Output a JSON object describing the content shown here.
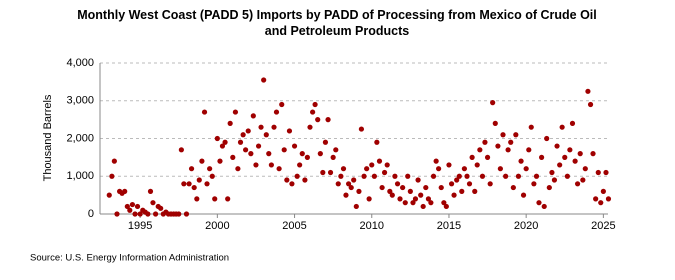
{
  "chart_data": {
    "type": "scatter",
    "title": "Monthly West Coast (PADD 5) Imports by PADD of Processing from Mexico of Crude Oil and Petroleum Products",
    "y_label": "Thousand Barrels",
    "source": "Source: U.S. Energy Information Administration",
    "color": "#a00000",
    "grid": true,
    "xlim": [
      1992.4,
      2025.3
    ],
    "xticks": [
      1995,
      2000,
      2005,
      2010,
      2015,
      2020,
      2025
    ],
    "ylim": [
      0,
      4000
    ],
    "yticks": [
      0,
      {
        "value": 1000,
        "label": "1,000"
      },
      {
        "value": 2000,
        "label": "2,000"
      },
      {
        "value": 3000,
        "label": "3,000"
      },
      {
        "value": 4000,
        "label": "4,000"
      }
    ],
    "x": [
      1993,
      1993.17,
      1993.33,
      1993.5,
      1993.67,
      1993.83,
      1994,
      1994.17,
      1994.33,
      1994.5,
      1994.67,
      1994.83,
      1995,
      1995.17,
      1995.33,
      1995.5,
      1995.67,
      1995.83,
      1996,
      1996.17,
      1996.33,
      1996.5,
      1996.67,
      1996.83,
      1997,
      1997.17,
      1997.33,
      1997.5,
      1997.67,
      1997.83,
      1998,
      1998.17,
      1998.33,
      1998.5,
      1998.67,
      1998.83,
      1999,
      1999.17,
      1999.33,
      1999.5,
      1999.67,
      1999.83,
      2000,
      2000.17,
      2000.33,
      2000.5,
      2000.67,
      2000.83,
      2001,
      2001.17,
      2001.33,
      2001.5,
      2001.67,
      2001.83,
      2002,
      2002.17,
      2002.33,
      2002.5,
      2002.67,
      2002.83,
      2003,
      2003.17,
      2003.33,
      2003.5,
      2003.67,
      2003.83,
      2004,
      2004.17,
      2004.33,
      2004.5,
      2004.67,
      2004.83,
      2005,
      2005.17,
      2005.33,
      2005.5,
      2005.67,
      2005.83,
      2006,
      2006.17,
      2006.33,
      2006.5,
      2006.67,
      2006.83,
      2007,
      2007.17,
      2007.33,
      2007.5,
      2007.67,
      2007.83,
      2008,
      2008.17,
      2008.33,
      2008.5,
      2008.67,
      2008.83,
      2009,
      2009.17,
      2009.33,
      2009.5,
      2009.67,
      2009.83,
      2010,
      2010.17,
      2010.33,
      2010.5,
      2010.67,
      2010.83,
      2011,
      2011.17,
      2011.33,
      2011.5,
      2011.67,
      2011.83,
      2012,
      2012.17,
      2012.33,
      2012.5,
      2012.67,
      2012.83,
      2013,
      2013.17,
      2013.33,
      2013.5,
      2013.67,
      2013.83,
      2014,
      2014.17,
      2014.33,
      2014.5,
      2014.67,
      2014.83,
      2015,
      2015.17,
      2015.33,
      2015.5,
      2015.67,
      2015.83,
      2016,
      2016.17,
      2016.33,
      2016.5,
      2016.67,
      2016.83,
      2017,
      2017.17,
      2017.33,
      2017.5,
      2017.67,
      2017.83,
      2018,
      2018.17,
      2018.33,
      2018.5,
      2018.67,
      2018.83,
      2019,
      2019.17,
      2019.33,
      2019.5,
      2019.67,
      2019.83,
      2020,
      2020.17,
      2020.33,
      2020.5,
      2020.67,
      2020.83,
      2021,
      2021.17,
      2021.33,
      2021.5,
      2021.67,
      2021.83,
      2022,
      2022.17,
      2022.33,
      2022.5,
      2022.67,
      2022.83,
      2023,
      2023.17,
      2023.33,
      2023.5,
      2023.67,
      2023.83,
      2024,
      2024.17,
      2024.33,
      2024.5,
      2024.67,
      2024.83,
      2025,
      2025.17,
      2025.33
    ],
    "values": [
      500,
      1000,
      1400,
      0,
      600,
      550,
      600,
      200,
      100,
      250,
      0,
      200,
      0,
      100,
      50,
      0,
      600,
      300,
      0,
      200,
      150,
      0,
      50,
      0,
      0,
      0,
      0,
      0,
      1700,
      800,
      0,
      800,
      1200,
      700,
      400,
      900,
      1400,
      2700,
      800,
      1200,
      1000,
      400,
      2000,
      1400,
      1800,
      1900,
      400,
      2400,
      1500,
      2700,
      1200,
      1900,
      2100,
      1700,
      2200,
      1600,
      2600,
      1300,
      1800,
      2300,
      3550,
      2100,
      1600,
      1300,
      2300,
      2700,
      1200,
      2900,
      1700,
      900,
      2200,
      800,
      1800,
      1000,
      1300,
      1600,
      900,
      1500,
      2300,
      2700,
      2900,
      2500,
      1600,
      1100,
      1900,
      2500,
      1100,
      1500,
      1700,
      800,
      1000,
      1200,
      500,
      800,
      700,
      900,
      200,
      600,
      2250,
      1000,
      1200,
      400,
      1300,
      1000,
      1900,
      1400,
      700,
      1100,
      1300,
      600,
      500,
      1000,
      800,
      400,
      700,
      300,
      1000,
      600,
      300,
      400,
      900,
      500,
      200,
      700,
      400,
      300,
      1000,
      1400,
      1200,
      700,
      300,
      200,
      1300,
      800,
      500,
      900,
      1000,
      600,
      1200,
      1000,
      800,
      1500,
      600,
      1300,
      1700,
      1000,
      1900,
      1500,
      800,
      2950,
      2400,
      1800,
      1200,
      2100,
      1000,
      1700,
      1900,
      700,
      2100,
      1000,
      1400,
      500,
      1200,
      1700,
      2300,
      800,
      1000,
      300,
      1500,
      200,
      2000,
      700,
      1100,
      900,
      1800,
      1300,
      2300,
      1500,
      1000,
      1700,
      2400,
      1400,
      800,
      1600,
      900,
      1200,
      3250,
      2900,
      1600,
      400,
      1100,
      300,
      600,
      1100,
      400
    ]
  }
}
